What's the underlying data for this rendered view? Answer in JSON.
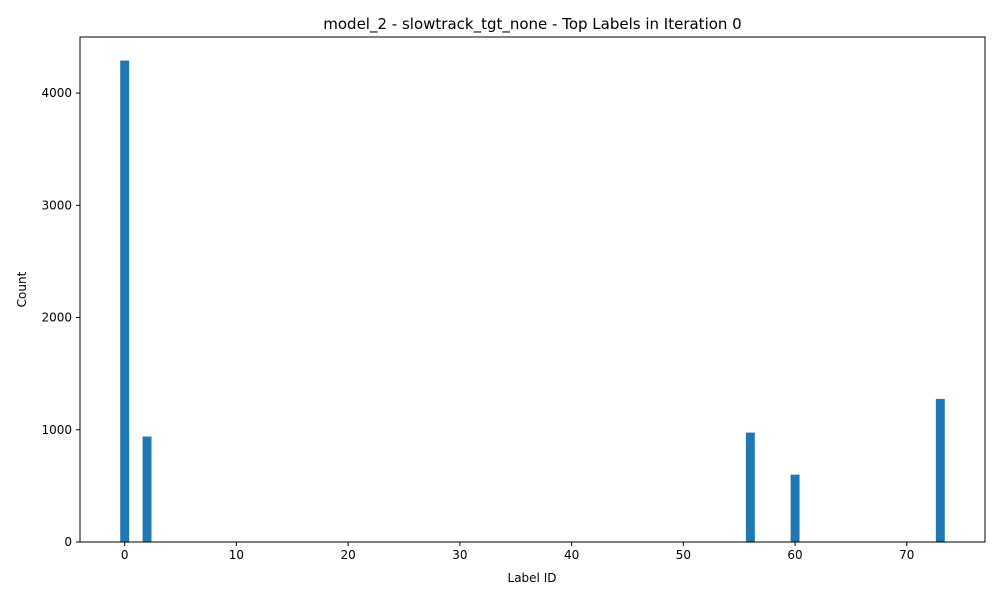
{
  "chart_data": {
    "type": "bar",
    "title": "model_2 - slowtrack_tgt_none - Top Labels in Iteration 0",
    "xlabel": "Label ID",
    "ylabel": "Count",
    "x": [
      0,
      2,
      56,
      60,
      73
    ],
    "values": [
      4290,
      940,
      975,
      600,
      1275
    ],
    "bar_color": "#1f77b4",
    "xlim": [
      -4,
      77
    ],
    "ylim": [
      0,
      4500
    ],
    "xticks": [
      0,
      10,
      20,
      30,
      40,
      50,
      60,
      70
    ],
    "yticks": [
      0,
      1000,
      2000,
      3000,
      4000
    ],
    "grid": false,
    "legend": false
  }
}
